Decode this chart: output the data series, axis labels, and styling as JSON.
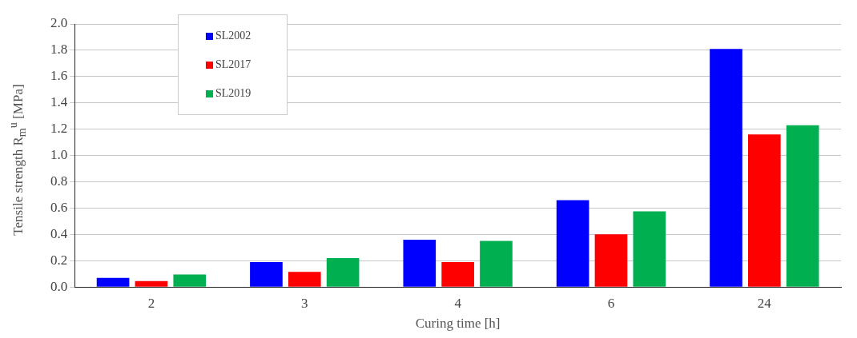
{
  "chart_data": {
    "type": "bar",
    "xlabel": "Curing time [h]",
    "ylabel": "Tensile strength R$_{m}$$^{u}$ [MPa]",
    "categories": [
      "2",
      "3",
      "4",
      "6",
      "24"
    ],
    "series": [
      {
        "name": "SL2002",
        "color": "#0000ff",
        "values": [
          0.07,
          0.19,
          0.36,
          0.66,
          1.81
        ]
      },
      {
        "name": "SL2017",
        "color": "#ff0000",
        "values": [
          0.045,
          0.115,
          0.19,
          0.4,
          1.16
        ]
      },
      {
        "name": "SL2019",
        "color": "#00b050",
        "values": [
          0.095,
          0.22,
          0.35,
          0.575,
          1.23
        ]
      }
    ],
    "ylim": [
      0,
      2
    ],
    "yticks": [
      {
        "value": 0,
        "label": "0.0"
      },
      {
        "value": 0.2,
        "label": "0.2"
      },
      {
        "value": 0.4,
        "label": "0.4"
      },
      {
        "value": 0.6,
        "label": "0.6"
      },
      {
        "value": 0.8,
        "label": "0.8"
      },
      {
        "value": 1,
        "label": "1.0"
      },
      {
        "value": 1.2,
        "label": "1.2"
      },
      {
        "value": 1.4,
        "label": "1.4"
      },
      {
        "value": 1.6,
        "label": "1.6"
      },
      {
        "value": 1.8,
        "label": "1.8"
      },
      {
        "value": 2,
        "label": "2.0"
      }
    ],
    "grid": "y",
    "legend": "top left"
  }
}
